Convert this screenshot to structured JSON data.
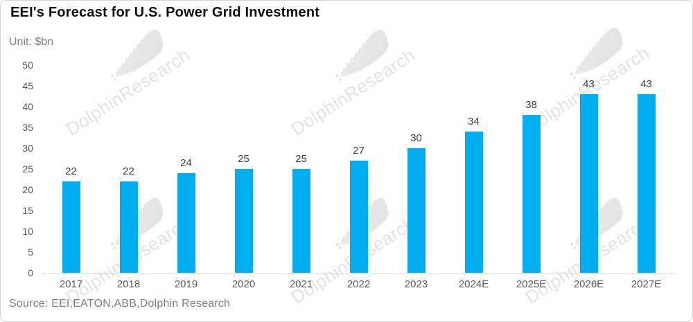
{
  "page": {
    "title": "EEI's Forecast for U.S. Power Grid Investment",
    "unit_label": "Unit: $bn",
    "source": "Source: EEI,EATON,ABB,Dolphin Research",
    "watermark_text": "DolphinResearch"
  },
  "colors": {
    "bar": "#00AEEF",
    "title_text": "#0d0d0d",
    "muted_text": "#7f7f7f",
    "axis_text": "#595959",
    "value_label_text": "#404040",
    "axis_line": "#d9d9d9",
    "watermark": "#e3e3e3",
    "card_border": "#d5d5d5",
    "background": "#ffffff"
  },
  "chart_data": {
    "type": "bar",
    "title": "EEI's Forecast for U.S. Power Grid Investment",
    "unit": "$bn",
    "categories": [
      "2017",
      "2018",
      "2019",
      "2020",
      "2021",
      "2022",
      "2023",
      "2024E",
      "2025E",
      "2026E",
      "2027E"
    ],
    "values": [
      22,
      22,
      24,
      25,
      25,
      27,
      30,
      34,
      38,
      43,
      43
    ],
    "ylim": [
      0,
      50
    ],
    "yticks": [
      0,
      5,
      10,
      15,
      20,
      25,
      30,
      35,
      40,
      45,
      50
    ],
    "grid": false,
    "legend": false,
    "data_labels": true,
    "bar_color": "#00AEEF",
    "source": "Source: EEI,EATON,ABB,Dolphin Research"
  }
}
